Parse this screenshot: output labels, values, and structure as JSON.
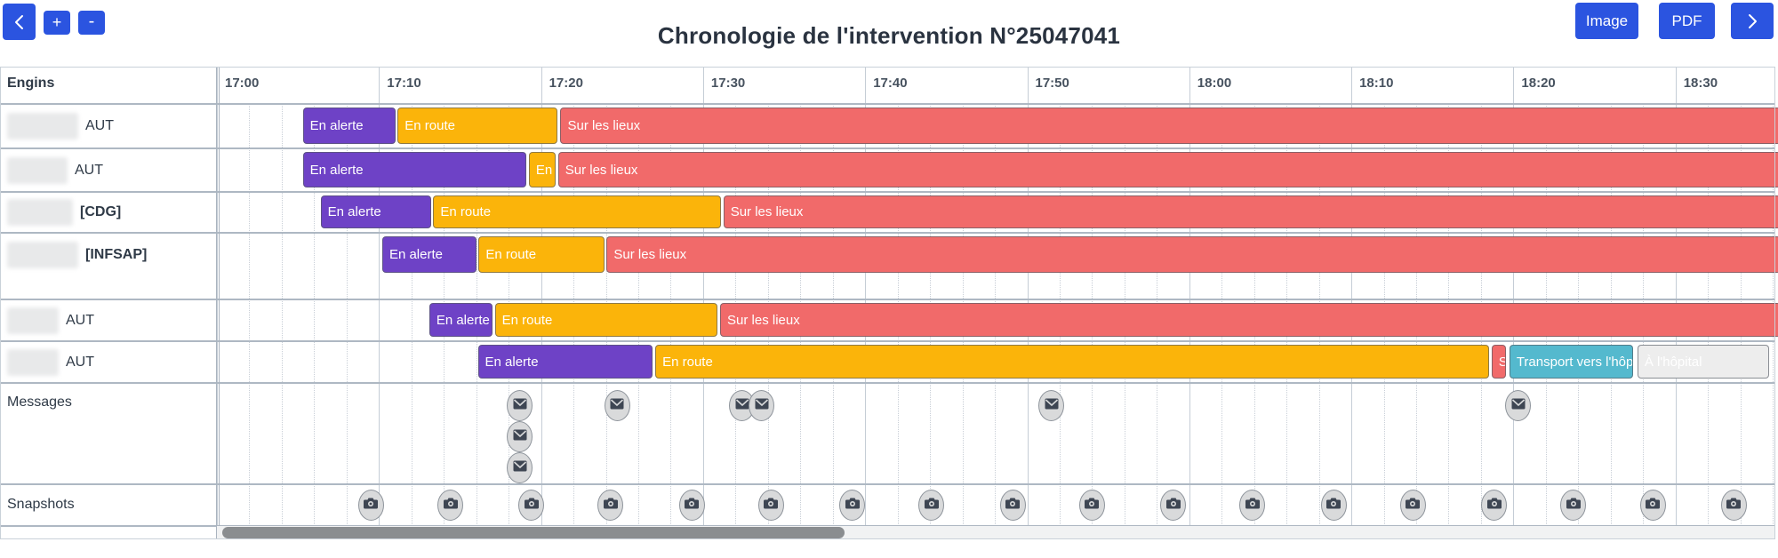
{
  "toolbar": {
    "title": "Chronologie de l'intervention N°25047041",
    "prev_icon": "chevron-left-icon",
    "next_icon": "chevron-right-icon",
    "zoom_in_label": "+",
    "zoom_out_label": "-",
    "image_label": "Image",
    "pdf_label": "PDF"
  },
  "colors": {
    "accent": "#2b54e0",
    "alerte": "#6e42c6",
    "route": "#fbb40a",
    "lieux": "#f16a6a",
    "transport": "#54b9ce",
    "hopital": "#ededed",
    "grid_major": "#c5cdd6",
    "grid_minor": "#c9cfd7"
  },
  "axis": {
    "corner_label": "Engins",
    "start": "17:00",
    "ticks": [
      "17:00",
      "17:10",
      "17:20",
      "17:30",
      "17:40",
      "17:50",
      "18:00",
      "18:10",
      "18:20",
      "18:30"
    ],
    "tick_interval_minutes": 10,
    "minor_interval_minutes": 2,
    "units_note": "bar times are decimal minutes after 17:00"
  },
  "statuses": {
    "alerte": {
      "label": "En alerte"
    },
    "route": {
      "label": "En route"
    },
    "lieux": {
      "label": "Sur les lieux"
    },
    "transport": {
      "label": "Transport vers l'hôpital"
    },
    "hopital": {
      "label": "À l'hôpital"
    }
  },
  "rows": [
    {
      "name_redacted": true,
      "suffix": "AUT",
      "bold": false,
      "bars": [
        {
          "status": "alerte",
          "start": 5.3,
          "end": 11.0
        },
        {
          "status": "route",
          "start": 11.15,
          "end": 21.0
        },
        {
          "status": "lieux",
          "start": 21.2,
          "end": 96.5
        }
      ]
    },
    {
      "name_redacted": true,
      "suffix": "AUT",
      "bold": false,
      "bars": [
        {
          "status": "alerte",
          "start": 5.3,
          "end": 19.1
        },
        {
          "status": "route",
          "start": 19.25,
          "end": 20.9
        },
        {
          "status": "lieux",
          "start": 21.05,
          "end": 96.5
        }
      ]
    },
    {
      "name_redacted": true,
      "suffix": "[CDG]",
      "bold": true,
      "bars": [
        {
          "status": "alerte",
          "start": 6.4,
          "end": 13.2
        },
        {
          "status": "route",
          "start": 13.35,
          "end": 31.1
        },
        {
          "status": "lieux",
          "start": 31.25,
          "end": 96.5
        }
      ]
    },
    {
      "name_redacted": true,
      "suffix": "[INFSAP]",
      "bold": true,
      "bars": [
        {
          "status": "alerte",
          "start": 10.2,
          "end": 16.0
        },
        {
          "status": "route",
          "start": 16.15,
          "end": 23.9
        },
        {
          "status": "lieux",
          "start": 24.05,
          "end": 96.5
        }
      ]
    },
    {
      "name_redacted": true,
      "suffix": "AUT",
      "bold": false,
      "bars": [
        {
          "status": "alerte",
          "start": 13.1,
          "end": 17.0
        },
        {
          "status": "route",
          "start": 17.15,
          "end": 30.9
        },
        {
          "status": "lieux",
          "start": 31.05,
          "end": 96.5
        }
      ]
    },
    {
      "name_redacted": true,
      "suffix": "AUT",
      "bold": false,
      "bars": [
        {
          "status": "alerte",
          "start": 16.1,
          "end": 26.9
        },
        {
          "status": "route",
          "start": 27.05,
          "end": 78.5
        },
        {
          "status": "lieux",
          "start": 78.65,
          "end": 79.55
        },
        {
          "status": "transport",
          "start": 79.75,
          "end": 87.4
        },
        {
          "status": "hopital",
          "start": 87.65,
          "end": 95.8
        }
      ]
    }
  ],
  "messages": {
    "label": "Messages",
    "icon": "envelope-icon",
    "items": [
      {
        "t": 18.7,
        "stack": 0
      },
      {
        "t": 18.7,
        "stack": 1
      },
      {
        "t": 18.7,
        "stack": 2
      },
      {
        "t": 24.7,
        "stack": 0
      },
      {
        "t": 32.4,
        "stack": 0
      },
      {
        "t": 33.6,
        "stack": 0
      },
      {
        "t": 51.5,
        "stack": 0
      },
      {
        "t": 80.3,
        "stack": 0
      }
    ]
  },
  "snapshots": {
    "label": "Snapshots",
    "icon": "camera-icon",
    "times": [
      9.5,
      14.4,
      19.4,
      24.3,
      29.3,
      34.2,
      39.2,
      44.1,
      49.1,
      54.0,
      59.0,
      63.9,
      68.9,
      73.8,
      78.8,
      83.7,
      88.6,
      93.6
    ]
  }
}
